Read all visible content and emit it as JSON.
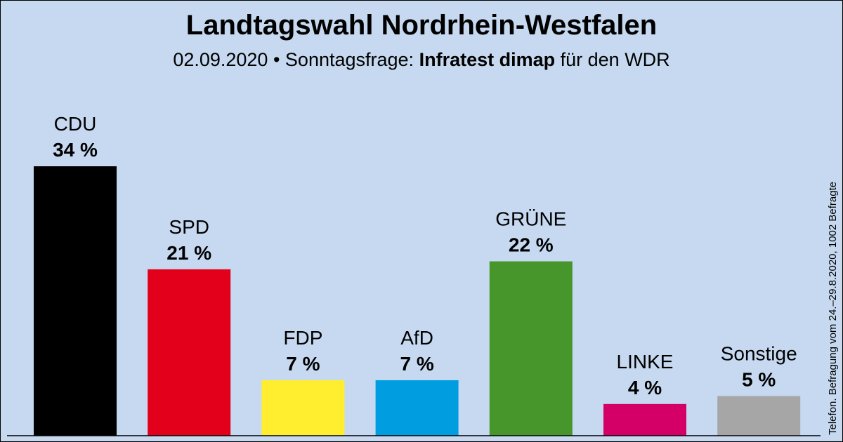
{
  "header": {
    "title": "Landtagswahl Nordrhein-Westfalen",
    "date": "02.09.2020",
    "separator": " • ",
    "question": "Sonntagsfrage:",
    "institute": "Infratest dimap",
    "client": "für den WDR"
  },
  "footnote": "Telefon. Befragung vom 24.–29.8.2020, 1002 Befragte",
  "chart_data": {
    "type": "bar",
    "title": "Landtagswahl Nordrhein-Westfalen",
    "categories": [
      "CDU",
      "SPD",
      "FDP",
      "AfD",
      "GRÜNE",
      "LINKE",
      "Sonstige"
    ],
    "values": [
      34,
      21,
      7,
      7,
      22,
      4,
      5
    ],
    "value_labels": [
      "34 %",
      "21 %",
      "7 %",
      "7 %",
      "22 %",
      "4 %",
      "5 %"
    ],
    "colors": [
      "#000000",
      "#e3001b",
      "#ffed2f",
      "#009ee0",
      "#46962b",
      "#d40067",
      "#a6a6a6"
    ],
    "unit": "%",
    "xlabel": "",
    "ylabel": "",
    "ylim": [
      0,
      34
    ],
    "grid": false,
    "legend": "none"
  }
}
